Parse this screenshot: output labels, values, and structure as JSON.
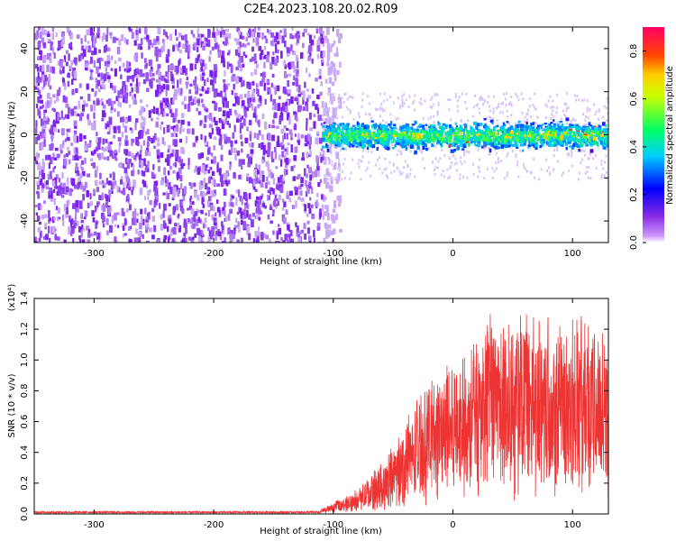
{
  "title": "C2E4.2023.108.20.02.R09",
  "colors": {
    "snr_line": "#ee3333",
    "spectrogram_low": "#7b1fe0",
    "spectrogram_band": "#1a1aff"
  },
  "chart_data": [
    {
      "type": "heatmap",
      "name": "spectrogram",
      "xlabel": "Height of straight line (km)",
      "ylabel": "Frequency (Hz)",
      "xlim": [
        -350,
        130
      ],
      "ylim": [
        -50,
        50
      ],
      "xticks": [
        -300,
        -200,
        -100,
        0,
        100
      ],
      "xtick_labels": [
        "-300",
        "-200",
        "-100",
        "0",
        "100"
      ],
      "yticks": [
        -40,
        -20,
        0,
        20,
        40
      ],
      "ytick_labels": [
        "-40",
        "-20",
        "0",
        "20",
        "40"
      ],
      "features": {
        "noise_region_x": [
          -350,
          -110
        ],
        "signal_band_start_x": -110,
        "signal_band_center_hz": 0,
        "signal_band_halfwidth_hz": 8
      },
      "colorbar": {
        "label": "Normalized spectral amplitude",
        "range": [
          0.0,
          0.9
        ],
        "ticks": [
          0.0,
          0.2,
          0.4,
          0.6,
          0.8
        ],
        "tick_labels": [
          "0.0",
          "0.2",
          "0.4",
          "0.6",
          "0.8"
        ]
      }
    },
    {
      "type": "line",
      "name": "snr",
      "xlabel": "Height of straight line (km)",
      "ylabel": "SNR (10 * v/v)",
      "scale_label": "(x10⁴)",
      "xlim": [
        -350,
        130
      ],
      "ylim": [
        0.0,
        1.4
      ],
      "xticks": [
        -300,
        -200,
        -100,
        0,
        100
      ],
      "xtick_labels": [
        "-300",
        "-200",
        "-100",
        "0",
        "100"
      ],
      "yticks": [
        0.0,
        0.2,
        0.4,
        0.6,
        0.8,
        1.0,
        1.2,
        1.4
      ],
      "ytick_labels": [
        "0.0",
        "0.2",
        "0.4",
        "0.6",
        "0.8",
        "1.0",
        "1.2",
        "1.4"
      ],
      "series": [
        {
          "name": "SNR",
          "x": [
            -350,
            -300,
            -250,
            -200,
            -150,
            -120,
            -110,
            -100,
            -90,
            -80,
            -70,
            -60,
            -50,
            -40,
            -30,
            -20,
            -10,
            0,
            10,
            20,
            30,
            40,
            50,
            60,
            70,
            80,
            90,
            100,
            110,
            120,
            130
          ],
          "y": [
            0.01,
            0.01,
            0.01,
            0.01,
            0.01,
            0.01,
            0.02,
            0.04,
            0.06,
            0.09,
            0.13,
            0.18,
            0.24,
            0.32,
            0.42,
            0.48,
            0.52,
            0.56,
            0.6,
            0.64,
            0.68,
            0.72,
            0.74,
            0.72,
            0.7,
            0.74,
            0.72,
            0.7,
            0.72,
            0.68,
            0.66
          ]
        }
      ]
    }
  ]
}
